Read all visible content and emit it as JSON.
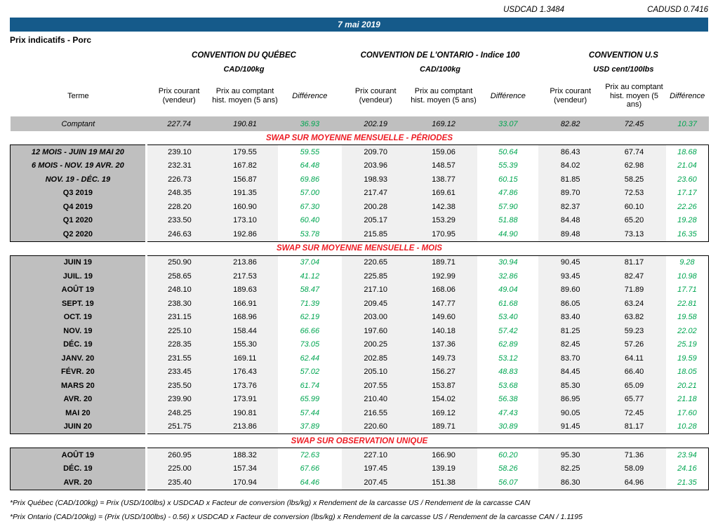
{
  "header": {
    "usdcad": "USDCAD 1.3484",
    "cadusd": "CADUSD 0.7416",
    "date": "7 mai 2019",
    "title": "Prix indicatifs - Porc"
  },
  "colors": {
    "banner_blue": "#155A8A",
    "label_gray": "#BFBFBF",
    "panel_gray": "#F0F0F0",
    "positive_green": "#00A651",
    "section_red": "#ED1C24"
  },
  "groups": [
    {
      "name": "CONVENTION DU QUÉBEC",
      "unit": "CAD/100kg"
    },
    {
      "name": "CONVENTION DE L'ONTARIO - Indice 100",
      "unit": "CAD/100kg"
    },
    {
      "name": "CONVENTION U.S",
      "unit": "USD cent/100lbs"
    }
  ],
  "columns": {
    "terme": "Terme",
    "prix_courant": "Prix courant (vendeur)",
    "hist": "Prix au comptant hist. moyen (5 ans)",
    "difference": "Différence"
  },
  "comptant": {
    "label": "Comptant",
    "values": [
      "227.74",
      "190.81",
      "36.93",
      "202.19",
      "169.12",
      "33.07",
      "82.82",
      "72.45",
      "10.37"
    ]
  },
  "sections": [
    {
      "title": "SWAP SUR MOYENNE MENSUELLE - PÉRIODES",
      "rows": [
        {
          "label": "12 MOIS -  JUIN 19 MAI 20",
          "italic": true,
          "values": [
            "239.10",
            "179.55",
            "59.55",
            "209.70",
            "159.06",
            "50.64",
            "86.43",
            "67.74",
            "18.68"
          ]
        },
        {
          "label": "6 MOIS -  NOV. 19 AVR. 20",
          "italic": true,
          "values": [
            "232.31",
            "167.82",
            "64.48",
            "203.96",
            "148.57",
            "55.39",
            "84.02",
            "62.98",
            "21.04"
          ]
        },
        {
          "label": "NOV. 19 -  DÉC. 19",
          "italic": true,
          "values": [
            "226.73",
            "156.87",
            "69.86",
            "198.93",
            "138.77",
            "60.15",
            "81.85",
            "58.25",
            "23.60"
          ]
        },
        {
          "label": "Q3 2019",
          "italic": false,
          "values": [
            "248.35",
            "191.35",
            "57.00",
            "217.47",
            "169.61",
            "47.86",
            "89.70",
            "72.53",
            "17.17"
          ]
        },
        {
          "label": "Q4 2019",
          "italic": false,
          "values": [
            "228.20",
            "160.90",
            "67.30",
            "200.28",
            "142.38",
            "57.90",
            "82.37",
            "60.10",
            "22.26"
          ]
        },
        {
          "label": "Q1 2020",
          "italic": false,
          "values": [
            "233.50",
            "173.10",
            "60.40",
            "205.17",
            "153.29",
            "51.88",
            "84.48",
            "65.20",
            "19.28"
          ]
        },
        {
          "label": "Q2 2020",
          "italic": false,
          "values": [
            "246.63",
            "192.86",
            "53.78",
            "215.85",
            "170.95",
            "44.90",
            "89.48",
            "73.13",
            "16.35"
          ]
        }
      ]
    },
    {
      "title": "SWAP SUR MOYENNE MENSUELLE - MOIS",
      "rows": [
        {
          "label": "JUIN 19",
          "italic": false,
          "values": [
            "250.90",
            "213.86",
            "37.04",
            "220.65",
            "189.71",
            "30.94",
            "90.45",
            "81.17",
            "9.28"
          ]
        },
        {
          "label": "JUIL. 19",
          "italic": false,
          "values": [
            "258.65",
            "217.53",
            "41.12",
            "225.85",
            "192.99",
            "32.86",
            "93.45",
            "82.47",
            "10.98"
          ]
        },
        {
          "label": "AOÛT 19",
          "italic": false,
          "values": [
            "248.10",
            "189.63",
            "58.47",
            "217.10",
            "168.06",
            "49.04",
            "89.60",
            "71.89",
            "17.71"
          ]
        },
        {
          "label": "SEPT. 19",
          "italic": false,
          "values": [
            "238.30",
            "166.91",
            "71.39",
            "209.45",
            "147.77",
            "61.68",
            "86.05",
            "63.24",
            "22.81"
          ]
        },
        {
          "label": "OCT. 19",
          "italic": false,
          "values": [
            "231.15",
            "168.96",
            "62.19",
            "203.00",
            "149.60",
            "53.40",
            "83.40",
            "63.82",
            "19.58"
          ]
        },
        {
          "label": "NOV. 19",
          "italic": false,
          "values": [
            "225.10",
            "158.44",
            "66.66",
            "197.60",
            "140.18",
            "57.42",
            "81.25",
            "59.23",
            "22.02"
          ]
        },
        {
          "label": "DÉC. 19",
          "italic": false,
          "values": [
            "228.35",
            "155.30",
            "73.05",
            "200.25",
            "137.36",
            "62.89",
            "82.45",
            "57.26",
            "25.19"
          ]
        },
        {
          "label": "JANV. 20",
          "italic": false,
          "values": [
            "231.55",
            "169.11",
            "62.44",
            "202.85",
            "149.73",
            "53.12",
            "83.70",
            "64.11",
            "19.59"
          ]
        },
        {
          "label": "FÉVR. 20",
          "italic": false,
          "values": [
            "233.45",
            "176.43",
            "57.02",
            "205.10",
            "156.27",
            "48.83",
            "84.45",
            "66.40",
            "18.05"
          ]
        },
        {
          "label": "MARS 20",
          "italic": false,
          "values": [
            "235.50",
            "173.76",
            "61.74",
            "207.55",
            "153.87",
            "53.68",
            "85.30",
            "65.09",
            "20.21"
          ]
        },
        {
          "label": "AVR. 20",
          "italic": false,
          "values": [
            "239.90",
            "173.91",
            "65.99",
            "210.40",
            "154.02",
            "56.38",
            "86.95",
            "65.77",
            "21.18"
          ]
        },
        {
          "label": "MAI 20",
          "italic": false,
          "values": [
            "248.25",
            "190.81",
            "57.44",
            "216.55",
            "169.12",
            "47.43",
            "90.05",
            "72.45",
            "17.60"
          ]
        },
        {
          "label": "JUIN 20",
          "italic": false,
          "values": [
            "251.75",
            "213.86",
            "37.89",
            "220.60",
            "189.71",
            "30.89",
            "91.45",
            "81.17",
            "10.28"
          ]
        }
      ]
    },
    {
      "title": "SWAP SUR OBSERVATION UNIQUE",
      "rows": [
        {
          "label": "AOÛT 19",
          "italic": false,
          "values": [
            "260.95",
            "188.32",
            "72.63",
            "227.10",
            "166.90",
            "60.20",
            "95.30",
            "71.36",
            "23.94"
          ]
        },
        {
          "label": "DÉC. 19",
          "italic": false,
          "values": [
            "225.00",
            "157.34",
            "67.66",
            "197.45",
            "139.19",
            "58.26",
            "82.25",
            "58.09",
            "24.16"
          ]
        },
        {
          "label": "AVR. 20",
          "italic": false,
          "values": [
            "235.40",
            "170.94",
            "64.46",
            "207.45",
            "151.38",
            "56.07",
            "86.30",
            "64.96",
            "21.35"
          ]
        }
      ]
    }
  ],
  "footnotes": [
    "*Prix Québec (CAD/100kg) = Prix (USD/100lbs) x USDCAD x Facteur de conversion (lbs/kg) x Rendement de la carcasse US / Rendement de la carcasse CAN",
    "*Prix Ontario (CAD/100kg) = (Prix (USD/100lbs) - 0.56) x USDCAD x Facteur de conversion (lbs/kg) x Rendement de la carcasse US / Rendement de la carcasse CAN / 1.1195"
  ]
}
